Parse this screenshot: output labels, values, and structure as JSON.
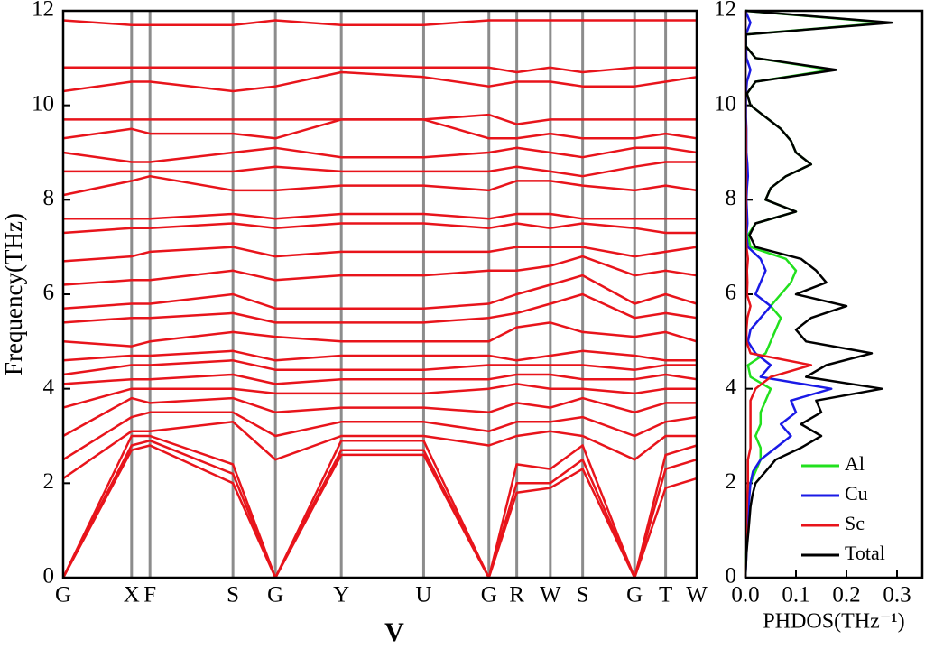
{
  "chart_data": [
    {
      "type": "line",
      "xlabel": "V",
      "ylabel": "Frequency(THz)",
      "x": [
        0,
        0.108,
        0.137,
        0.268,
        0.335,
        0.439,
        0.569,
        0.672,
        0.716,
        0.769,
        0.82,
        0.902,
        0.951,
        1.0
      ],
      "xlim": [
        0,
        1
      ],
      "xticks": [
        {
          "value": 0,
          "label": "G"
        },
        {
          "value": 0.108,
          "label": "X"
        },
        {
          "value": 0.137,
          "label": "F"
        },
        {
          "value": 0.268,
          "label": "S"
        },
        {
          "value": 0.335,
          "label": "G"
        },
        {
          "value": 0.439,
          "label": "Y"
        },
        {
          "value": 0.569,
          "label": "U"
        },
        {
          "value": 0.672,
          "label": "G"
        },
        {
          "value": 0.716,
          "label": "R"
        },
        {
          "value": 0.769,
          "label": "W"
        },
        {
          "value": 0.82,
          "label": "S"
        },
        {
          "value": 0.902,
          "label": "G"
        },
        {
          "value": 0.951,
          "label": "T"
        },
        {
          "value": 1.0,
          "label": "W"
        }
      ],
      "ylim": [
        0,
        12
      ],
      "yticks": [
        0,
        2,
        4,
        6,
        8,
        10,
        12
      ],
      "series": [
        {
          "color": "#e8141b",
          "values": [
            0,
            2.7,
            2.8,
            2.0,
            0,
            2.6,
            2.6,
            0,
            1.8,
            1.9,
            2.3,
            0,
            1.9,
            2.1
          ]
        },
        {
          "color": "#e8141b",
          "values": [
            0,
            2.8,
            2.9,
            2.2,
            0,
            2.7,
            2.7,
            0,
            2.0,
            2.0,
            2.5,
            0,
            2.3,
            2.5
          ]
        },
        {
          "color": "#e8141b",
          "values": [
            0,
            3.0,
            3.0,
            2.4,
            0,
            2.9,
            2.9,
            0,
            2.4,
            2.3,
            2.8,
            0,
            2.6,
            2.8
          ]
        },
        {
          "color": "#e8141b",
          "values": [
            2.1,
            3.1,
            3.1,
            3.3,
            2.5,
            3.0,
            3.0,
            2.8,
            3.0,
            3.1,
            3.0,
            2.5,
            3.0,
            3.0
          ]
        },
        {
          "color": "#e8141b",
          "values": [
            2.5,
            3.4,
            3.5,
            3.5,
            3.0,
            3.3,
            3.3,
            3.1,
            3.3,
            3.3,
            3.4,
            3.0,
            3.3,
            3.4
          ]
        },
        {
          "color": "#e8141b",
          "values": [
            3.0,
            3.8,
            3.7,
            3.8,
            3.5,
            3.6,
            3.6,
            3.5,
            3.7,
            3.6,
            3.8,
            3.5,
            3.7,
            3.7
          ]
        },
        {
          "color": "#e8141b",
          "values": [
            3.6,
            4.0,
            4.0,
            4.0,
            3.9,
            3.9,
            3.9,
            4.0,
            4.1,
            4.0,
            4.0,
            3.9,
            4.0,
            4.0
          ]
        },
        {
          "color": "#e8141b",
          "values": [
            4.1,
            4.2,
            4.2,
            4.3,
            4.1,
            4.2,
            4.2,
            4.2,
            4.3,
            4.3,
            4.2,
            4.2,
            4.3,
            4.2
          ]
        },
        {
          "color": "#e8141b",
          "values": [
            4.3,
            4.5,
            4.5,
            4.6,
            4.4,
            4.4,
            4.4,
            4.5,
            4.5,
            4.5,
            4.5,
            4.4,
            4.5,
            4.5
          ]
        },
        {
          "color": "#e8141b",
          "values": [
            4.6,
            4.7,
            4.7,
            4.8,
            4.6,
            4.7,
            4.7,
            4.7,
            4.6,
            4.7,
            4.8,
            4.7,
            4.6,
            4.6
          ]
        },
        {
          "color": "#e8141b",
          "values": [
            5.0,
            4.9,
            5.0,
            5.2,
            5.1,
            5.0,
            5.0,
            5.0,
            5.3,
            5.4,
            5.2,
            5.1,
            5.2,
            5.0
          ]
        },
        {
          "color": "#e8141b",
          "values": [
            5.4,
            5.5,
            5.5,
            5.6,
            5.4,
            5.4,
            5.4,
            5.5,
            5.6,
            5.8,
            6.0,
            5.5,
            5.6,
            5.5
          ]
        },
        {
          "color": "#e8141b",
          "values": [
            5.7,
            5.8,
            5.8,
            6.0,
            5.7,
            5.7,
            5.7,
            5.8,
            6.0,
            6.2,
            6.4,
            5.8,
            6.0,
            5.8
          ]
        },
        {
          "color": "#e8141b",
          "values": [
            6.2,
            6.3,
            6.3,
            6.5,
            6.3,
            6.4,
            6.4,
            6.5,
            6.5,
            6.6,
            6.8,
            6.4,
            6.5,
            6.4
          ]
        },
        {
          "color": "#e8141b",
          "values": [
            6.7,
            6.8,
            6.9,
            7.0,
            6.8,
            6.9,
            6.9,
            6.9,
            7.0,
            7.0,
            7.0,
            6.8,
            6.9,
            7.0
          ]
        },
        {
          "color": "#e8141b",
          "values": [
            7.3,
            7.4,
            7.4,
            7.5,
            7.4,
            7.5,
            7.5,
            7.4,
            7.5,
            7.4,
            7.5,
            7.4,
            7.3,
            7.3
          ]
        },
        {
          "color": "#e8141b",
          "values": [
            7.6,
            7.6,
            7.6,
            7.7,
            7.6,
            7.7,
            7.7,
            7.6,
            7.7,
            7.7,
            7.6,
            7.6,
            7.6,
            7.6
          ]
        },
        {
          "color": "#e8141b",
          "values": [
            8.1,
            8.4,
            8.5,
            8.2,
            8.2,
            8.3,
            8.3,
            8.2,
            8.4,
            8.4,
            8.3,
            8.2,
            8.3,
            8.2
          ]
        },
        {
          "color": "#e8141b",
          "values": [
            8.6,
            8.6,
            8.6,
            8.6,
            8.7,
            8.6,
            8.6,
            8.6,
            8.7,
            8.6,
            8.5,
            8.7,
            8.8,
            8.8
          ]
        },
        {
          "color": "#e8141b",
          "values": [
            9.0,
            8.8,
            8.8,
            9.0,
            9.1,
            8.9,
            8.9,
            9.0,
            9.1,
            9.0,
            8.9,
            9.1,
            9.1,
            9.0
          ]
        },
        {
          "color": "#e8141b",
          "values": [
            9.3,
            9.5,
            9.4,
            9.4,
            9.3,
            9.7,
            9.7,
            9.3,
            9.3,
            9.4,
            9.3,
            9.3,
            9.4,
            9.3
          ]
        },
        {
          "color": "#e8141b",
          "values": [
            9.7,
            9.7,
            9.7,
            9.7,
            9.7,
            9.7,
            9.7,
            9.8,
            9.6,
            9.7,
            9.7,
            9.7,
            9.7,
            9.7
          ]
        },
        {
          "color": "#e8141b",
          "values": [
            10.3,
            10.5,
            10.5,
            10.3,
            10.4,
            10.7,
            10.6,
            10.4,
            10.5,
            10.5,
            10.4,
            10.4,
            10.5,
            10.6
          ]
        },
        {
          "color": "#e8141b",
          "values": [
            10.8,
            10.8,
            10.8,
            10.8,
            10.8,
            10.8,
            10.8,
            10.8,
            10.7,
            10.8,
            10.7,
            10.8,
            10.8,
            10.8
          ]
        },
        {
          "color": "#e8141b",
          "values": [
            11.8,
            11.7,
            11.7,
            11.7,
            11.8,
            11.7,
            11.7,
            11.8,
            11.8,
            11.8,
            11.8,
            11.8,
            11.8,
            11.8
          ]
        }
      ]
    },
    {
      "type": "line",
      "xlabel": "PHDOS(THz⁻¹)",
      "legend": "lower right",
      "y": [
        0,
        0.25,
        0.5,
        0.75,
        1,
        1.25,
        1.5,
        1.75,
        2,
        2.25,
        2.5,
        2.75,
        3,
        3.25,
        3.5,
        3.75,
        4,
        4.25,
        4.5,
        4.75,
        5,
        5.25,
        5.5,
        5.75,
        6,
        6.25,
        6.5,
        6.75,
        7,
        7.25,
        7.5,
        7.75,
        8,
        8.25,
        8.5,
        8.75,
        9,
        9.25,
        9.5,
        9.75,
        10,
        10.25,
        10.5,
        10.75,
        11,
        11.25,
        11.5,
        11.75,
        12
      ],
      "xlim": [
        0,
        0.35
      ],
      "xticks": [
        {
          "value": 0,
          "label": "0.0"
        },
        0.1,
        0.2,
        0.3
      ],
      "ylim": [
        0,
        12
      ],
      "yticks": [
        0,
        2,
        4,
        6,
        8,
        10,
        12
      ],
      "series": [
        {
          "name": "Al",
          "color": "#22e01e",
          "values": [
            0,
            0,
            0,
            0.001,
            0.002,
            0.003,
            0.004,
            0.006,
            0.01,
            0.02,
            0.03,
            0.03,
            0.02,
            0.03,
            0.03,
            0.04,
            0.05,
            0.01,
            0.005,
            0.04,
            0.05,
            0.06,
            0.07,
            0.05,
            0.07,
            0.09,
            0.1,
            0.08,
            0.01,
            0.005,
            0.02,
            0.1,
            0.04,
            0.05,
            0.08,
            0.13,
            0.1,
            0.09,
            0.07,
            0.04,
            0.01,
            0.003,
            0.02,
            0.17,
            0.02,
            0.001,
            0.001,
            0.28,
            0
          ]
        },
        {
          "name": "Cu",
          "color": "#1a1ae6",
          "values": [
            0,
            0.001,
            0.002,
            0.003,
            0.004,
            0.005,
            0.006,
            0.008,
            0.01,
            0.015,
            0.03,
            0.06,
            0.09,
            0.07,
            0.1,
            0.09,
            0.17,
            0.03,
            0.05,
            0.02,
            0.005,
            0.01,
            0.03,
            0.05,
            0.02,
            0.03,
            0.04,
            0.03,
            0.005,
            0.002,
            0.004,
            0.003,
            0.002,
            0.003,
            0.005,
            0.004,
            0.002,
            0.002,
            0.002,
            0.001,
            0.001,
            0.001,
            0.003,
            0.01,
            0.002,
            0.001,
            0.001,
            0.01,
            0
          ]
        },
        {
          "name": "Sc",
          "color": "#e8141b",
          "values": [
            0,
            0,
            0.001,
            0.001,
            0.002,
            0.002,
            0.003,
            0.004,
            0.005,
            0.005,
            0.005,
            0.01,
            0.01,
            0.01,
            0.01,
            0.01,
            0.02,
            0.05,
            0.13,
            0.01,
            0.002,
            0.002,
            0.004,
            0.01,
            0.003,
            0.004,
            0.003,
            0.005,
            0.002,
            0.001,
            0.001,
            0.001,
            0.001,
            0.001,
            0.001,
            0.001,
            0.001,
            0.001,
            0.001,
            0,
            0,
            0,
            0,
            0,
            0,
            0,
            0,
            0,
            0
          ]
        },
        {
          "name": "Total",
          "color": "#000000",
          "values": [
            0,
            0.001,
            0.002,
            0.004,
            0.006,
            0.008,
            0.01,
            0.014,
            0.02,
            0.04,
            0.06,
            0.11,
            0.15,
            0.11,
            0.15,
            0.14,
            0.27,
            0.12,
            0.16,
            0.25,
            0.12,
            0.1,
            0.13,
            0.2,
            0.1,
            0.16,
            0.14,
            0.11,
            0.02,
            0.008,
            0.02,
            0.1,
            0.04,
            0.05,
            0.08,
            0.13,
            0.1,
            0.09,
            0.07,
            0.04,
            0.01,
            0.003,
            0.02,
            0.18,
            0.02,
            0.001,
            0.001,
            0.29,
            0
          ]
        }
      ]
    }
  ]
}
